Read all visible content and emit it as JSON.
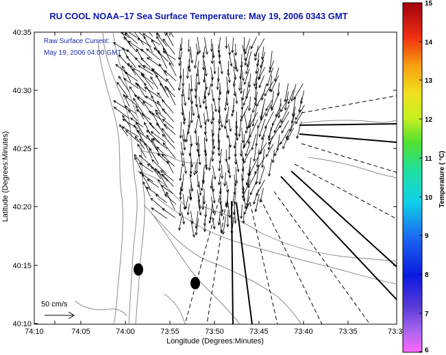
{
  "title": "RU COOL  NOAA–17  Sea Surface Temperature:  May 19, 2006 0343 GMT",
  "annotation": {
    "line1": "Raw Surface Current:",
    "line2": "May 19, 2006 04:00 GMT"
  },
  "scale": {
    "label": "50 cm/s"
  },
  "axes": {
    "xlabel": "Longitude (Degrees:Minutes)",
    "ylabel": "Latitude (Degrees:Minutes)",
    "x_ticks": [
      "74:10",
      "74:05",
      "74:00",
      "73:55",
      "73:50",
      "73:45",
      "73:40",
      "73:35",
      "73:3"
    ],
    "y_ticks": [
      "40:35",
      "40:30",
      "40:25",
      "40:20",
      "40:15",
      "40:10"
    ]
  },
  "colorbar": {
    "label": "Temperature ( °C)",
    "min": 6,
    "max": 15,
    "ticks": [
      "15",
      "14",
      "13",
      "12",
      "11",
      "10",
      "9",
      "8",
      "7",
      "6"
    ]
  }
}
